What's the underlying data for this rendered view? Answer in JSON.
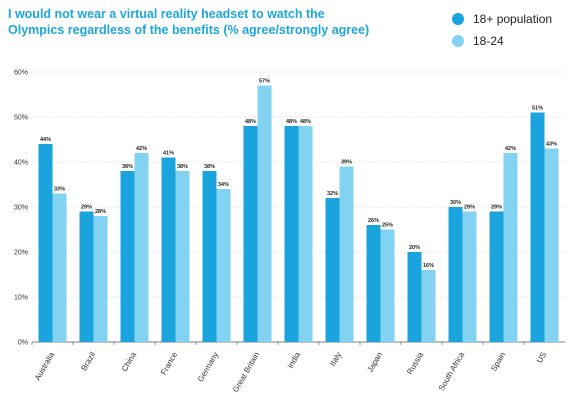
{
  "chart_data": {
    "type": "bar",
    "title": "I would not wear a virtual reality headset to watch the Olympics regardless of the benefits (% agree/strongly agree)",
    "categories": [
      "Australia",
      "Brazil",
      "China",
      "France",
      "Germany",
      "Great Britain",
      "India",
      "Italy",
      "Japan",
      "Russia",
      "South Africa",
      "Spain",
      "US"
    ],
    "series": [
      {
        "name": "18+ population",
        "color": "#1aa3dc",
        "values": [
          44,
          29,
          38,
          41,
          38,
          48,
          48,
          32,
          26,
          20,
          30,
          29,
          51
        ]
      },
      {
        "name": "18-24",
        "color": "#82d3f2",
        "values": [
          33,
          28,
          42,
          38,
          34,
          57,
          48,
          39,
          25,
          16,
          29,
          42,
          43
        ]
      }
    ],
    "ylim": [
      0,
      60
    ],
    "yticks": [
      "0%",
      "10%",
      "20%",
      "30%",
      "40%",
      "50%",
      "60%"
    ],
    "value_suffix": "%",
    "grid": true,
    "legend_position": "top-right",
    "xlabel": "",
    "ylabel": ""
  }
}
